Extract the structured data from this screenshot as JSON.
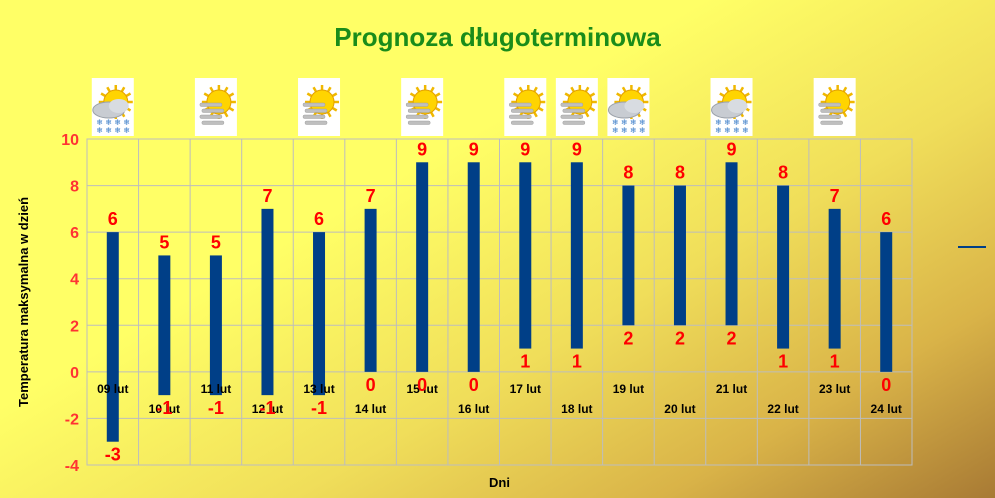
{
  "chart_data": {
    "type": "bar",
    "title": "Prognoza długoterminowa",
    "ylabel": "Temperatura maksymalna w dzień",
    "xlabel": "Dni",
    "ylim": [
      -4,
      10
    ],
    "yticks": [
      10,
      8,
      6,
      4,
      2,
      0,
      -2,
      -4
    ],
    "grid": true,
    "legend": "right",
    "bar_color": "#003f87",
    "categories": [
      "09 lut",
      "10 lut",
      "11 lut",
      "12 lut",
      "13 lut",
      "14 lut",
      "15 lut",
      "16 lut",
      "17 lut",
      "18 lut",
      "19 lut",
      "20 lut",
      "21 lut",
      "22 lut",
      "23 lut",
      "24 lut"
    ],
    "series": [
      {
        "values_high": [
          6,
          5,
          5,
          7,
          6,
          7,
          9,
          9,
          9,
          9,
          8,
          8,
          9,
          8,
          7,
          6
        ],
        "values_low": [
          -3,
          -1,
          -1,
          -1,
          -1,
          0,
          0,
          0,
          1,
          1,
          2,
          2,
          2,
          1,
          1,
          0
        ]
      }
    ],
    "icons": [
      "sun-cloud-snow-icon",
      "sun-fog-icon",
      "sun-fog-icon",
      "sun-fog-icon",
      "sun-fog-icon",
      "sun-fog-icon",
      "sun-fog-icon",
      "sun-fog-icon",
      "sun-fog-icon",
      null,
      "sun-cloud-snow-icon",
      null,
      "sun-cloud-snow-icon",
      null,
      null,
      null
    ],
    "icon_columns": [
      0,
      2,
      4,
      6,
      8,
      9,
      10,
      12,
      14
    ]
  }
}
